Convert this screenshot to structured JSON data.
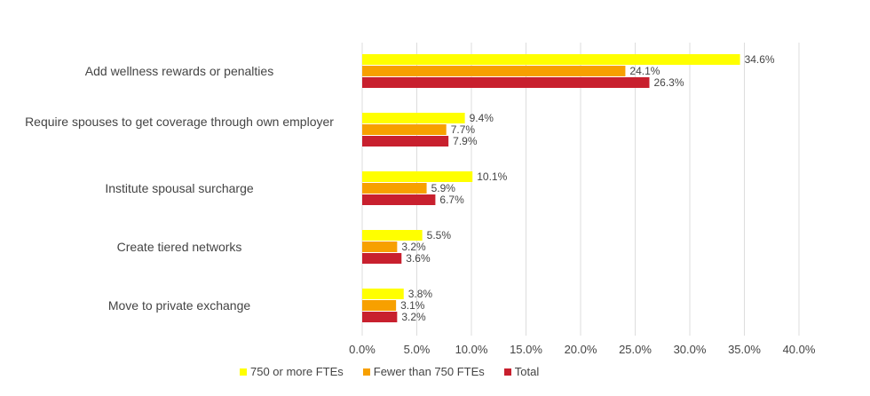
{
  "chart_data": {
    "type": "bar",
    "orientation": "horizontal",
    "categories": [
      "Add wellness rewards or penalties",
      "Require spouses to get coverage through own employer",
      "Institute spousal surcharge",
      "Create tiered networks",
      "Move to private exchange"
    ],
    "series": [
      {
        "name": "750 or more FTEs",
        "color": "#FFFF00",
        "values": [
          34.6,
          9.4,
          10.1,
          5.5,
          3.8
        ],
        "labels": [
          "34.6%",
          "9.4%",
          "10.1%",
          "5.5%",
          "3.8%"
        ]
      },
      {
        "name": "Fewer than 750 FTEs",
        "color": "#F7A000",
        "values": [
          24.1,
          7.7,
          5.9,
          3.2,
          3.1
        ],
        "labels": [
          "24.1%",
          "7.7%",
          "5.9%",
          "3.2%",
          "3.1%"
        ]
      },
      {
        "name": "Total",
        "color": "#C8202E",
        "values": [
          26.3,
          7.9,
          6.7,
          3.6,
          3.2
        ],
        "labels": [
          "26.3%",
          "7.9%",
          "6.7%",
          "3.6%",
          "3.2%"
        ]
      }
    ],
    "xlim": [
      0,
      40
    ],
    "x_ticks": [
      "0.0%",
      "5.0%",
      "10.0%",
      "15.0%",
      "20.0%",
      "25.0%",
      "30.0%",
      "35.0%",
      "40.0%"
    ],
    "grid": true,
    "legend_position": "bottom",
    "title": "",
    "xlabel": "",
    "ylabel": ""
  }
}
